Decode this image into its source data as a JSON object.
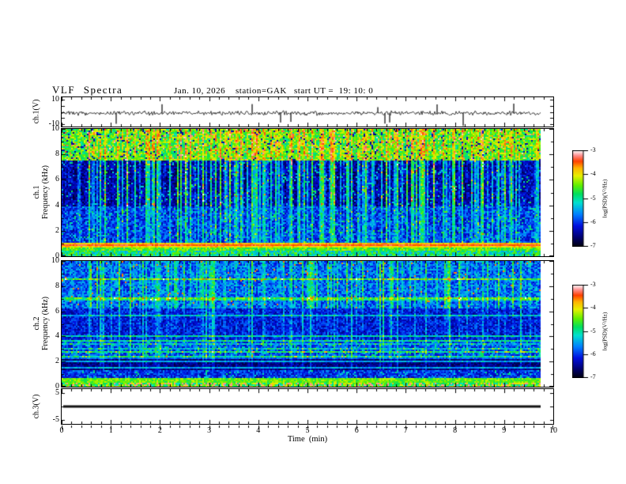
{
  "chart_data": {
    "type": "heatmap",
    "title": "VLF Spectra",
    "date": "Jan. 10, 2026",
    "station": "station=GAK",
    "start_ut": "start UT =  19: 10: 0",
    "xlabel": "Time  (min)",
    "xlim": [
      0,
      10
    ],
    "x_major_ticks": [
      0,
      1,
      2,
      3,
      4,
      5,
      6,
      7,
      8,
      9,
      10
    ],
    "x_minor_step": 0.2,
    "data_end_min": 9.75,
    "panels": [
      {
        "name": "ch1-waveform",
        "kind": "waveform",
        "ylabel": "ch.1(V)",
        "ylim": [
          -10,
          10
        ],
        "ytick_labels": [
          10,
          -10
        ],
        "mean_level_v": -1,
        "summary": "broadband noise near 0 V with intermittent impulsive spikes reaching toward ±10 V, trace ends near 9.75 min"
      },
      {
        "name": "ch1-spectrogram",
        "kind": "spectrogram",
        "ylabel_line1": "ch.1",
        "ylabel_line2": "Frequency  (kHz)",
        "ylim": [
          0,
          10
        ],
        "ytick_labels": [
          0,
          2,
          4,
          6,
          8,
          10
        ],
        "features": [
          "intense green/yellow band 7.5-10 kHz with red impulsive streaks",
          "dark quiet band 4-7.5 kHz crossed by dense vertical broadband sferic streaks",
          "blue background 1-4 kHz with cyan speckle",
          "strong red/orange horizontal line emission near 0.7-1.1 kHz",
          "green band below 0.5 kHz"
        ]
      },
      {
        "name": "ch2-spectrogram",
        "kind": "spectrogram",
        "ylabel_line1": "ch.2",
        "ylabel_line2": "Frequency  (kHz)",
        "ylim": [
          0,
          10
        ],
        "ytick_labels": [
          0,
          2,
          4,
          6,
          8,
          10
        ],
        "features": [
          "blue background with cyan/green vertical sferic streaks strongest above 6 kHz",
          "horizontal cyan interference lines across the panel",
          "dark quiet band 1.4-2.3 kHz",
          "cyan speckle band 2.4-3.6 kHz",
          "yellow-green horizontal band near 0.4-0.7 kHz",
          "multicoloured edge row at 0 kHz"
        ]
      },
      {
        "name": "ch3-waveform",
        "kind": "waveform",
        "ylabel": "ch.3(V)",
        "ylim": [
          -5,
          5
        ],
        "ytick_labels": [
          5,
          -5
        ],
        "mean_level_v": 0,
        "summary": "flat thick trace at 0 V ending near 9.75 min"
      }
    ],
    "colorbars": [
      {
        "label": "log(PSD)(V²/Hz)",
        "ticks": [
          -3,
          -4,
          -5,
          -6,
          -7
        ],
        "range": [
          -7,
          -3
        ]
      },
      {
        "label": "log(PSD)(V²/Hz)",
        "ticks": [
          -3,
          -4,
          -5,
          -6,
          -7
        ],
        "range": [
          -7,
          -3
        ]
      }
    ],
    "colormap_stops": [
      [
        0.0,
        "#000006"
      ],
      [
        0.1,
        "#00006e"
      ],
      [
        0.22,
        "#0010e0"
      ],
      [
        0.34,
        "#0080ff"
      ],
      [
        0.46,
        "#00e0d0"
      ],
      [
        0.55,
        "#00e060"
      ],
      [
        0.64,
        "#60f000"
      ],
      [
        0.74,
        "#e8f000"
      ],
      [
        0.82,
        "#ffb400"
      ],
      [
        0.89,
        "#ff4000"
      ],
      [
        0.95,
        "#ff9090"
      ],
      [
        1.0,
        "#ffffff"
      ]
    ],
    "frame_color": "#000000",
    "trace_color": "#111111",
    "background": "#ffffff",
    "seed": 20260110
  }
}
